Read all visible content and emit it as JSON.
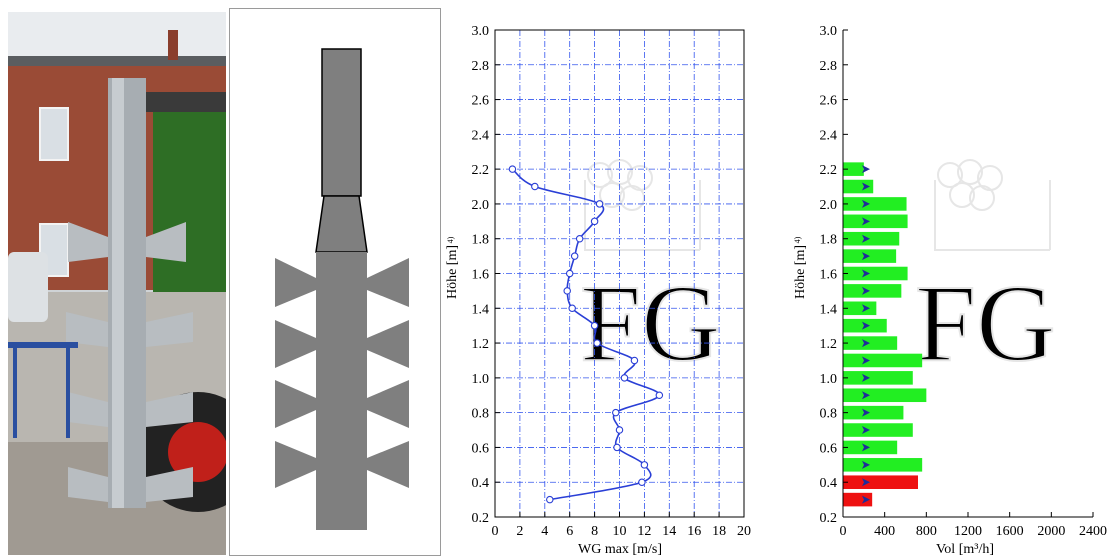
{
  "panels": {
    "photo": {
      "icon": "mixer-photo"
    },
    "drawing": {
      "icon": "mixer-schematic-icon"
    }
  },
  "velocity_chart_labels": {
    "ylabel": "Höhe [m]",
    "ylabel_sup": "4)",
    "xlabel": "WG max [m/s]"
  },
  "volume_chart_labels": {
    "ylabel": "Höhe [m]",
    "ylabel_sup": "4)",
    "xlabel": "Vol [m³/h]"
  },
  "colors": {
    "line": "#2a3fd6",
    "bar_green": "#22ee22",
    "bar_red": "#ee1111",
    "arrow": "#1f2d9a",
    "grid": "#3355ee",
    "watermark": "#e6e6e6"
  },
  "chart_data": [
    {
      "type": "line",
      "title": "",
      "xlabel": "WG max [m/s]",
      "ylabel": "Höhe [m]",
      "xlim": [
        0,
        20
      ],
      "ylim": [
        0.2,
        3.0
      ],
      "xticks": [
        0,
        2,
        4,
        6,
        8,
        10,
        12,
        14,
        16,
        18,
        20
      ],
      "yticks": [
        0.2,
        0.4,
        0.6,
        0.8,
        1.0,
        1.2,
        1.4,
        1.6,
        1.8,
        2.0,
        2.2,
        2.4,
        2.6,
        2.8,
        3.0
      ],
      "grid": true,
      "series": [
        {
          "points": [
            {
              "x": 4.4,
              "y": 0.3
            },
            {
              "x": 11.8,
              "y": 0.4
            },
            {
              "x": 12.0,
              "y": 0.5
            },
            {
              "x": 9.8,
              "y": 0.6
            },
            {
              "x": 10.0,
              "y": 0.7
            },
            {
              "x": 9.7,
              "y": 0.8
            },
            {
              "x": 13.2,
              "y": 0.9
            },
            {
              "x": 10.4,
              "y": 1.0
            },
            {
              "x": 11.2,
              "y": 1.1
            },
            {
              "x": 8.2,
              "y": 1.2
            },
            {
              "x": 8.0,
              "y": 1.3
            },
            {
              "x": 6.2,
              "y": 1.4
            },
            {
              "x": 5.8,
              "y": 1.5
            },
            {
              "x": 6.0,
              "y": 1.6
            },
            {
              "x": 6.4,
              "y": 1.7
            },
            {
              "x": 6.8,
              "y": 1.8
            },
            {
              "x": 8.0,
              "y": 1.9
            },
            {
              "x": 8.4,
              "y": 2.0
            },
            {
              "x": 3.2,
              "y": 2.1
            },
            {
              "x": 1.4,
              "y": 2.2
            }
          ]
        }
      ]
    },
    {
      "type": "bar",
      "orientation": "horizontal",
      "title": "",
      "xlabel": "Vol [m³/h]",
      "ylabel": "Höhe [m]",
      "xlim": [
        0,
        2400
      ],
      "ylim": [
        0.2,
        3.0
      ],
      "xticks": [
        0,
        400,
        800,
        1200,
        1600,
        2000,
        2400
      ],
      "yticks": [
        0.2,
        0.4,
        0.6,
        0.8,
        1.0,
        1.2,
        1.4,
        1.6,
        1.8,
        2.0,
        2.2,
        2.4,
        2.6,
        2.8,
        3.0
      ],
      "grid": false,
      "bars": [
        {
          "y": 0.3,
          "value": 280,
          "color": "red"
        },
        {
          "y": 0.4,
          "value": 720,
          "color": "red"
        },
        {
          "y": 0.5,
          "value": 760,
          "color": "green"
        },
        {
          "y": 0.6,
          "value": 520,
          "color": "green"
        },
        {
          "y": 0.7,
          "value": 670,
          "color": "green"
        },
        {
          "y": 0.8,
          "value": 580,
          "color": "green"
        },
        {
          "y": 0.9,
          "value": 800,
          "color": "green"
        },
        {
          "y": 1.0,
          "value": 670,
          "color": "green"
        },
        {
          "y": 1.1,
          "value": 760,
          "color": "green"
        },
        {
          "y": 1.2,
          "value": 520,
          "color": "green"
        },
        {
          "y": 1.3,
          "value": 420,
          "color": "green"
        },
        {
          "y": 1.4,
          "value": 320,
          "color": "green"
        },
        {
          "y": 1.5,
          "value": 560,
          "color": "green"
        },
        {
          "y": 1.6,
          "value": 620,
          "color": "green"
        },
        {
          "y": 1.7,
          "value": 510,
          "color": "green"
        },
        {
          "y": 1.8,
          "value": 540,
          "color": "green"
        },
        {
          "y": 1.9,
          "value": 620,
          "color": "green"
        },
        {
          "y": 2.0,
          "value": 610,
          "color": "green"
        },
        {
          "y": 2.1,
          "value": 290,
          "color": "green"
        },
        {
          "y": 2.2,
          "value": 200,
          "color": "green"
        }
      ]
    }
  ]
}
